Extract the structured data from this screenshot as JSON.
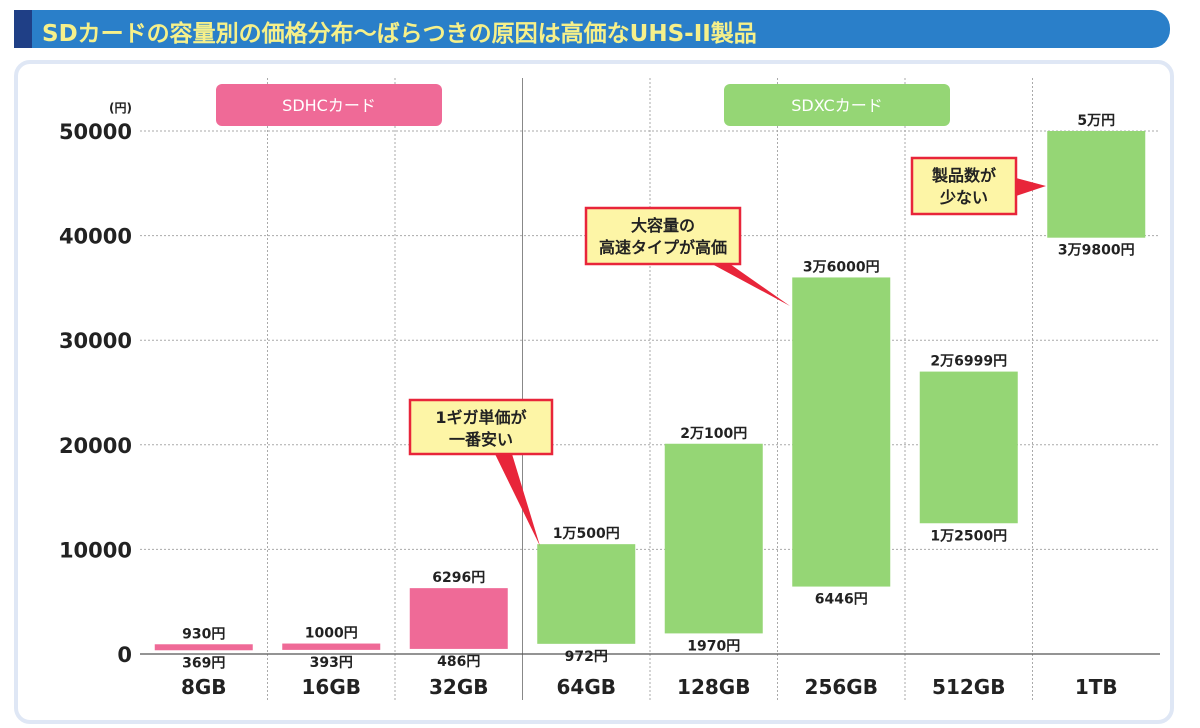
{
  "title": "SDカードの容量別の価格分布～ばらつきの原因は高価なUHS-II製品",
  "chart_data": {
    "type": "bar",
    "subtype": "floating-range",
    "title": "SDカードの容量別の価格分布～ばらつきの原因は高価なUHS-II製品",
    "ylabel": "(円)",
    "ylim": [
      0,
      50000
    ],
    "yticks": [
      0,
      10000,
      20000,
      30000,
      40000,
      50000
    ],
    "grid": true,
    "categories": [
      "8GB",
      "16GB",
      "32GB",
      "64GB",
      "128GB",
      "256GB",
      "512GB",
      "1TB"
    ],
    "min": [
      369,
      393,
      486,
      972,
      1970,
      6446,
      12500,
      39800
    ],
    "max": [
      930,
      1000,
      6296,
      10500,
      20100,
      36000,
      26999,
      50000
    ],
    "min_labels": [
      "369円",
      "393円",
      "486円",
      "972円",
      "1970円",
      "6446円",
      "1万2500円",
      "3万9800円"
    ],
    "max_labels": [
      "930円",
      "1000円",
      "6296円",
      "1万500円",
      "2万100円",
      "3万6000円",
      "2万6999円",
      "5万円"
    ],
    "groups": [
      {
        "label": "SDHCカード",
        "categories": [
          "8GB",
          "16GB",
          "32GB"
        ],
        "color": "#ef6a97"
      },
      {
        "label": "SDXCカード",
        "categories": [
          "64GB",
          "128GB",
          "256GB",
          "512GB",
          "1TB"
        ],
        "color": "#95d675"
      }
    ],
    "annotations": [
      {
        "lines": [
          "1ギガ単価が",
          "一番安い"
        ],
        "target": "64GB"
      },
      {
        "lines": [
          "大容量の",
          "高速タイプが高価"
        ],
        "target": "256GB"
      },
      {
        "lines": [
          "製品数が",
          "少ない"
        ],
        "target": "1TB"
      }
    ]
  }
}
